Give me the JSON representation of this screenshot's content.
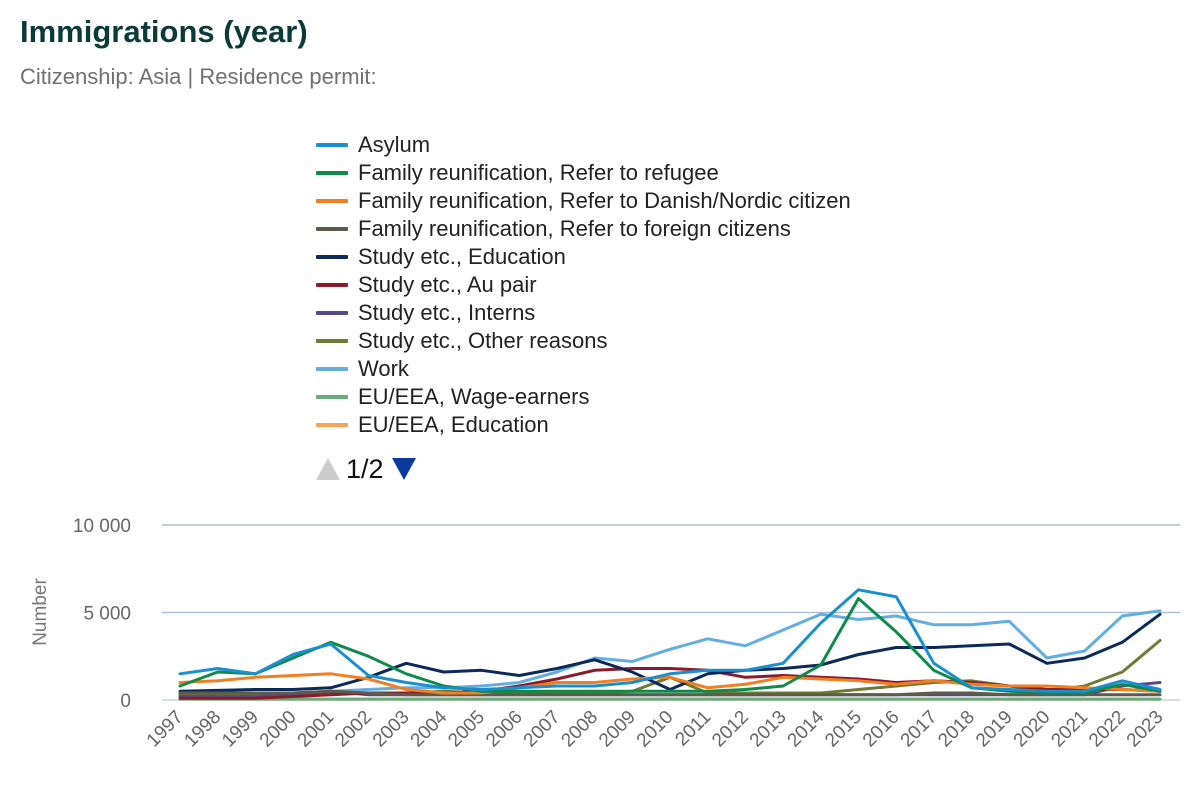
{
  "header": {
    "title": "Immigrations (year)",
    "subtitle": "Citizenship: Asia | Residence permit:"
  },
  "legend": {
    "page_indicator": "1/2",
    "up_icon": "arrow-up-icon",
    "down_icon": "arrow-down-icon"
  },
  "chart_data": {
    "type": "line",
    "title": "Immigrations (year)",
    "subtitle": "Citizenship: Asia | Residence permit:",
    "xlabel": "",
    "ylabel": "Number",
    "ylim": [
      0,
      10000
    ],
    "yticks": [
      0,
      5000,
      10000
    ],
    "ytick_labels": [
      "0",
      "5 000",
      "10 000"
    ],
    "grid": true,
    "legend_position": "top",
    "categories": [
      "1997",
      "1998",
      "1999",
      "2000",
      "2001",
      "2002",
      "2003",
      "2004",
      "2005",
      "2006",
      "2007",
      "2008",
      "2009",
      "2010",
      "2011",
      "2012",
      "2013",
      "2014",
      "2015",
      "2016",
      "2017",
      "2018",
      "2019",
      "2020",
      "2021",
      "2022",
      "2023"
    ],
    "series": [
      {
        "name": "Asylum",
        "color": "#1a8fd0",
        "values": [
          1500,
          1800,
          1500,
          2600,
          3200,
          1400,
          1000,
          700,
          600,
          700,
          800,
          800,
          1000,
          1500,
          1700,
          1700,
          2100,
          4400,
          6300,
          5900,
          2100,
          700,
          600,
          500,
          500,
          1100,
          600
        ]
      },
      {
        "name": "Family reunification, Refer to refugee",
        "color": "#0f8a4a",
        "values": [
          800,
          1600,
          1500,
          2400,
          3300,
          2500,
          1500,
          800,
          500,
          500,
          500,
          500,
          500,
          500,
          500,
          600,
          800,
          2000,
          5800,
          3900,
          1700,
          700,
          500,
          400,
          400,
          900,
          500
        ]
      },
      {
        "name": "Family reunification, Refer to Danish/Nordic citizen",
        "color": "#f07f22",
        "values": [
          1000,
          1100,
          1300,
          1400,
          1500,
          1200,
          600,
          400,
          400,
          700,
          1000,
          1000,
          1200,
          1300,
          700,
          900,
          1300,
          1200,
          1100,
          900,
          1100,
          900,
          800,
          800,
          700,
          600,
          500
        ]
      },
      {
        "name": "Family reunification, Refer to foreign citizens",
        "color": "#5e5b4b",
        "values": [
          400,
          400,
          400,
          400,
          500,
          400,
          300,
          300,
          300,
          300,
          300,
          300,
          300,
          300,
          300,
          300,
          300,
          300,
          300,
          300,
          400,
          400,
          300,
          300,
          300,
          300,
          300
        ]
      },
      {
        "name": "Study etc., Education",
        "color": "#0b2a5a",
        "values": [
          500,
          550,
          600,
          600,
          700,
          1300,
          2100,
          1600,
          1700,
          1400,
          1800,
          2300,
          1600,
          600,
          1500,
          1700,
          1800,
          2000,
          2600,
          3000,
          3000,
          3100,
          3200,
          2100,
          2400,
          3300,
          4900
        ]
      },
      {
        "name": "Study etc., Au pair",
        "color": "#8b1a2b",
        "values": [
          100,
          100,
          100,
          200,
          300,
          400,
          400,
          400,
          500,
          800,
          1200,
          1700,
          1800,
          1800,
          1700,
          1300,
          1400,
          1300,
          1200,
          1000,
          1100,
          1000,
          800,
          600,
          600,
          600,
          500
        ]
      },
      {
        "name": "Study etc., Interns",
        "color": "#584a8a",
        "values": [
          200,
          200,
          200,
          300,
          500,
          300,
          300,
          300,
          300,
          300,
          300,
          300,
          300,
          300,
          300,
          300,
          300,
          300,
          300,
          300,
          300,
          300,
          300,
          300,
          300,
          800,
          1000
        ]
      },
      {
        "name": "Study etc., Other reasons",
        "color": "#6e7a35",
        "values": [
          300,
          300,
          300,
          300,
          400,
          400,
          400,
          500,
          400,
          400,
          400,
          400,
          500,
          1300,
          400,
          400,
          400,
          400,
          600,
          800,
          1000,
          1100,
          800,
          500,
          800,
          1600,
          3400
        ]
      },
      {
        "name": "Work",
        "color": "#63aee0",
        "values": [
          300,
          400,
          400,
          400,
          500,
          600,
          700,
          700,
          800,
          1000,
          1600,
          2400,
          2200,
          2900,
          3500,
          3100,
          4000,
          4900,
          4600,
          4800,
          4300,
          4300,
          4500,
          2400,
          2800,
          4800,
          5100
        ]
      },
      {
        "name": "EU/EEA, Wage-earners",
        "color": "#6aaa7c",
        "values": [
          50,
          50,
          50,
          50,
          50,
          50,
          50,
          50,
          50,
          50,
          50,
          50,
          50,
          50,
          50,
          50,
          50,
          50,
          50,
          50,
          50,
          50,
          50,
          50,
          50,
          50,
          50
        ]
      },
      {
        "name": "EU/EEA, Education",
        "color": "#f4a655",
        "values": [
          50,
          50,
          50,
          50,
          50,
          50,
          50,
          50,
          50,
          50,
          50,
          50,
          50,
          50,
          50,
          50,
          50,
          50,
          50,
          50,
          50,
          50,
          50,
          50,
          50,
          50,
          50
        ]
      }
    ]
  }
}
